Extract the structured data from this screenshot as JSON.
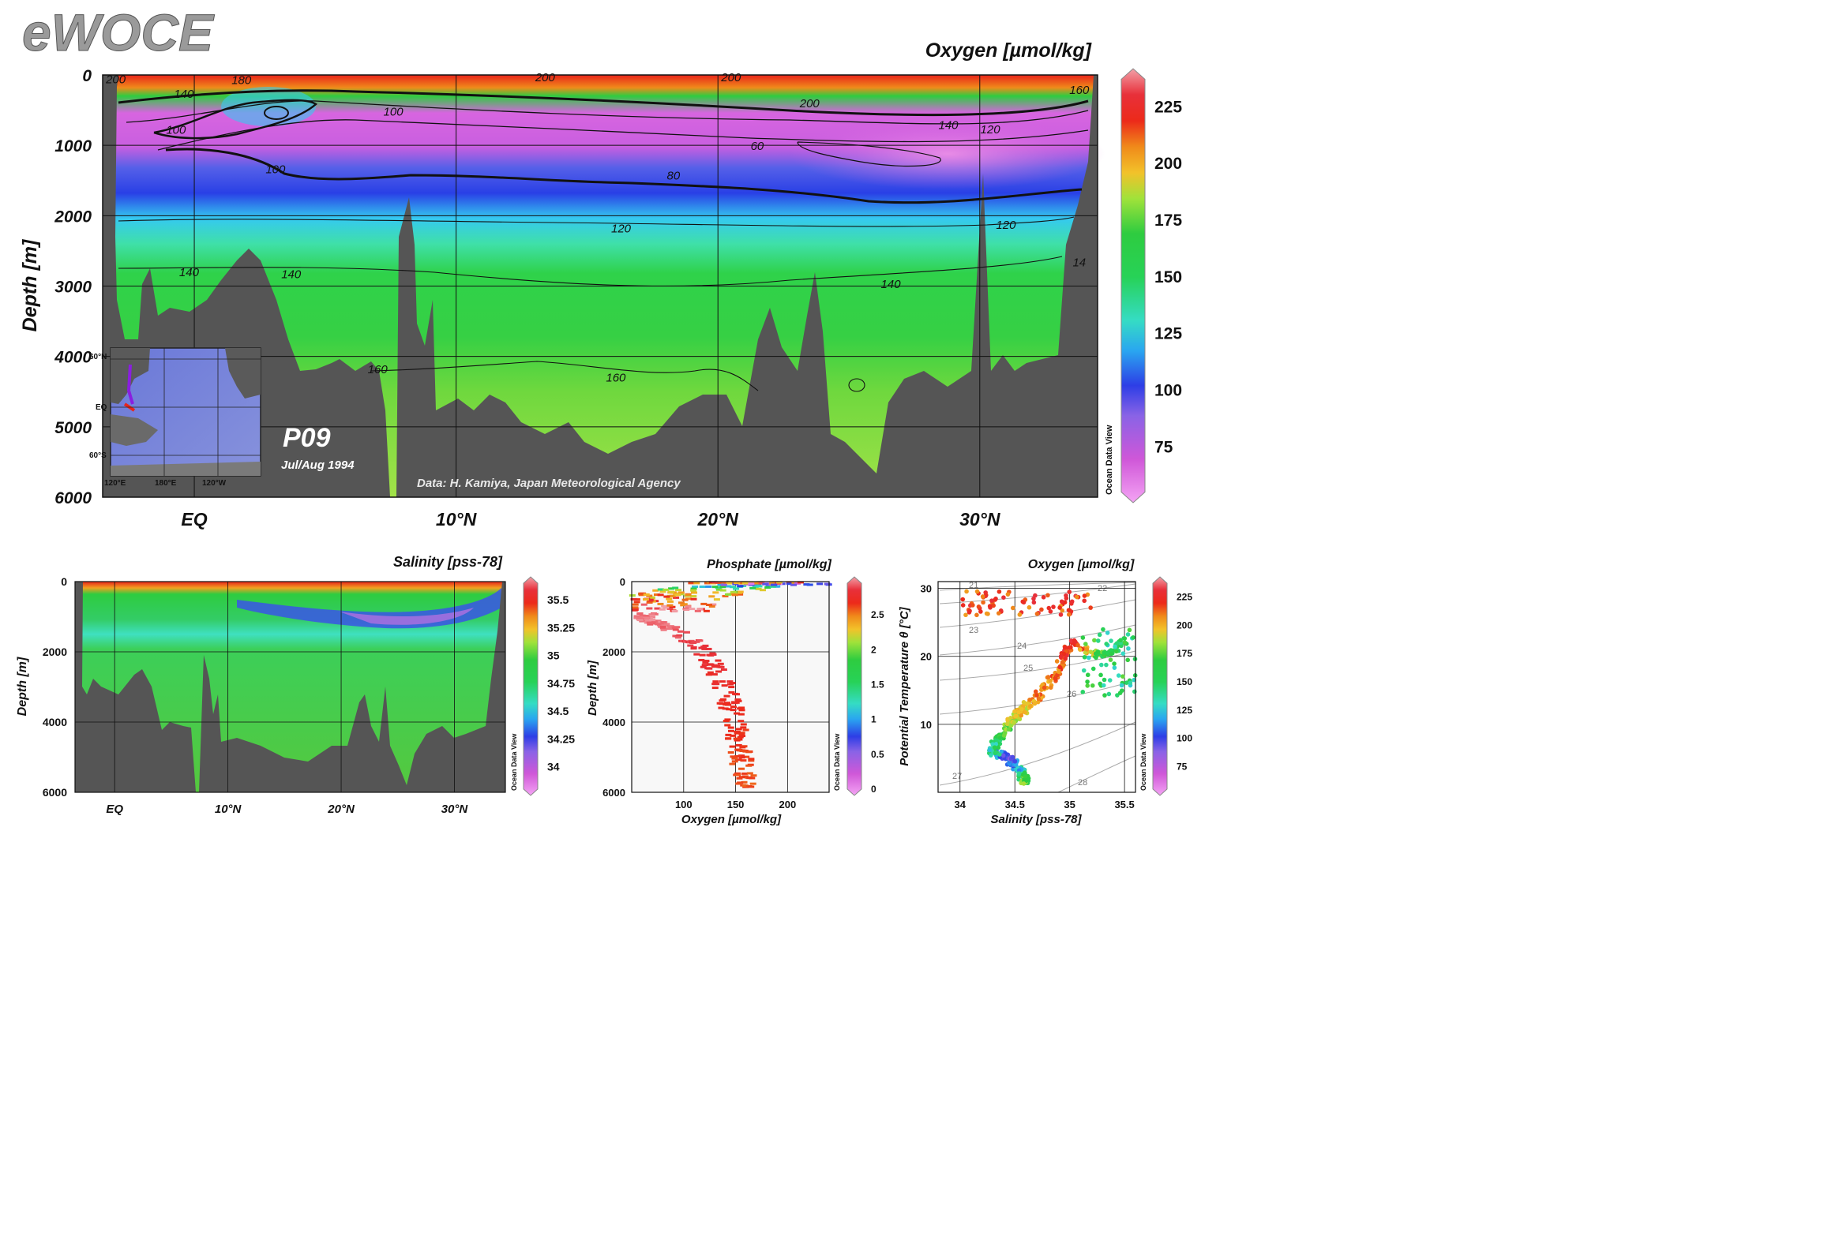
{
  "brand": "eWOCE",
  "colors": {
    "seafloor": "#555555",
    "grid": "#111111",
    "scale": [
      "#f08ff0",
      "#cf57d8",
      "#8a63e6",
      "#2d3ee6",
      "#2aa6f0",
      "#35dcc4",
      "#27d257",
      "#2ecc40",
      "#9fe23a",
      "#f2c22a",
      "#f08a1a",
      "#ec2a1a",
      "#e8303a",
      "#f2a0a8"
    ]
  },
  "chart_data": [
    {
      "type": "heatmap",
      "title": "Oxygen [µmol/kg]",
      "ylabel": "Depth [m]",
      "xlabel": "",
      "x_ticks": [
        "EQ",
        "10°N",
        "20°N",
        "30°N"
      ],
      "x_tick_values": [
        0,
        10,
        20,
        30
      ],
      "xlim": [
        -3.5,
        34.5
      ],
      "y_ticks": [
        "0",
        "1000",
        "2000",
        "3000",
        "4000",
        "5000",
        "6000"
      ],
      "y_tick_values": [
        0,
        1000,
        2000,
        3000,
        4000,
        5000,
        6000
      ],
      "ylim": [
        6000,
        0
      ],
      "colorbar": {
        "ticks": [
          "75",
          "100",
          "125",
          "150",
          "175",
          "200",
          "225"
        ],
        "tick_values": [
          75,
          100,
          125,
          150,
          175,
          200,
          225
        ],
        "range": [
          55,
          237
        ]
      },
      "contour_labels": [
        {
          "text": "200",
          "x": -3.0,
          "y": 50
        },
        {
          "text": "180",
          "x": 1.8,
          "y": 60
        },
        {
          "text": "140",
          "x": -0.4,
          "y": 260
        },
        {
          "text": "100",
          "x": -0.7,
          "y": 770
        },
        {
          "text": "100",
          "x": 7.6,
          "y": 510
        },
        {
          "text": "100",
          "x": 3.1,
          "y": 1330
        },
        {
          "text": "200",
          "x": 13.4,
          "y": 20
        },
        {
          "text": "200",
          "x": 20.5,
          "y": 20
        },
        {
          "text": "200",
          "x": 23.5,
          "y": 390
        },
        {
          "text": "160",
          "x": 33.8,
          "y": 200
        },
        {
          "text": "140",
          "x": 28.8,
          "y": 700
        },
        {
          "text": "120",
          "x": 30.4,
          "y": 760
        },
        {
          "text": "60",
          "x": 21.5,
          "y": 1000
        },
        {
          "text": "80",
          "x": 18.3,
          "y": 1420
        },
        {
          "text": "120",
          "x": 16.3,
          "y": 2170
        },
        {
          "text": "120",
          "x": 31.0,
          "y": 2120
        },
        {
          "text": "140",
          "x": -0.2,
          "y": 2790
        },
        {
          "text": "140",
          "x": 3.7,
          "y": 2820
        },
        {
          "text": "140",
          "x": 26.6,
          "y": 2960
        },
        {
          "text": "14",
          "x": 33.8,
          "y": 2650
        },
        {
          "text": "160",
          "x": 7.0,
          "y": 4170
        },
        {
          "text": "160",
          "x": 16.1,
          "y": 4290
        }
      ],
      "track_label": "P09",
      "period_label": "Jul/Aug 1994",
      "credit": "Data: H. Kamiya, Japan Meteorological Agency",
      "software": "Ocean Data View",
      "inset_map": {
        "lat_labels": [
          "60°N",
          "EQ",
          "60°S"
        ],
        "lon_labels": [
          "120°E",
          "180°E",
          "120°W"
        ]
      }
    },
    {
      "type": "heatmap",
      "title": "Salinity [pss-78]",
      "ylabel": "Depth [m]",
      "x_ticks": [
        "EQ",
        "10°N",
        "20°N",
        "30°N"
      ],
      "x_tick_values": [
        0,
        10,
        20,
        30
      ],
      "xlim": [
        -3.5,
        34.5
      ],
      "y_ticks": [
        "0",
        "2000",
        "4000",
        "6000"
      ],
      "y_tick_values": [
        0,
        2000,
        4000,
        6000
      ],
      "ylim": [
        6000,
        0
      ],
      "colorbar": {
        "ticks": [
          "34",
          "34.25",
          "34.5",
          "34.75",
          "35",
          "35.25",
          "35.5"
        ],
        "tick_values": [
          34,
          34.25,
          34.5,
          34.75,
          35,
          35.25,
          35.5
        ],
        "range": [
          33.8,
          35.65
        ]
      },
      "software": "Ocean Data View"
    },
    {
      "type": "scatter",
      "title": "Phosphate [µmol/kg]",
      "xlabel": "Oxygen [µmol/kg]",
      "ylabel": "Depth [m]",
      "x_ticks": [
        "100",
        "150",
        "200"
      ],
      "x_tick_values": [
        100,
        150,
        200
      ],
      "xlim": [
        50,
        240
      ],
      "y_ticks": [
        "0",
        "2000",
        "4000",
        "6000"
      ],
      "y_tick_values": [
        0,
        2000,
        4000,
        6000
      ],
      "ylim": [
        6000,
        0
      ],
      "colorbar": {
        "ticks": [
          "0",
          "0.5",
          "1",
          "1.5",
          "2",
          "2.5"
        ],
        "tick_values": [
          0,
          0.5,
          1,
          1.5,
          2,
          2.5
        ],
        "range": [
          0,
          2.95
        ]
      },
      "points_approx": [
        {
          "depth": 50,
          "oxygen": 215,
          "phosphate": 0.2
        },
        {
          "depth": 120,
          "oxygen": 170,
          "phosphate": 1.0
        },
        {
          "depth": 250,
          "oxygen": 120,
          "phosphate": 1.8
        },
        {
          "depth": 450,
          "oxygen": 90,
          "phosphate": 2.3
        },
        {
          "depth": 700,
          "oxygen": 75,
          "phosphate": 2.7
        },
        {
          "depth": 1000,
          "oxygen": 60,
          "phosphate": 2.9
        },
        {
          "depth": 1500,
          "oxygen": 100,
          "phosphate": 2.8
        },
        {
          "depth": 2000,
          "oxygen": 120,
          "phosphate": 2.7
        },
        {
          "depth": 3000,
          "oxygen": 140,
          "phosphate": 2.6
        },
        {
          "depth": 4000,
          "oxygen": 150,
          "phosphate": 2.5
        },
        {
          "depth": 5000,
          "oxygen": 155,
          "phosphate": 2.45
        },
        {
          "depth": 5800,
          "oxygen": 160,
          "phosphate": 2.4
        }
      ],
      "software": "Ocean Data View"
    },
    {
      "type": "scatter",
      "title": "Oxygen [µmol/kg]",
      "xlabel": "Salinity [pss-78]",
      "ylabel": "Potential Temperature θ [°C]",
      "x_ticks": [
        "34",
        "34.5",
        "35",
        "35.5"
      ],
      "x_tick_values": [
        34,
        34.5,
        35,
        35.5
      ],
      "xlim": [
        33.8,
        35.6
      ],
      "y_ticks": [
        "10",
        "20",
        "30"
      ],
      "y_tick_values": [
        10,
        20,
        30
      ],
      "ylim": [
        0,
        31
      ],
      "density_labels": [
        "21",
        "22",
        "23",
        "24",
        "25",
        "26",
        "27",
        "28"
      ],
      "colorbar": {
        "ticks": [
          "75",
          "100",
          "125",
          "150",
          "175",
          "200",
          "225"
        ],
        "tick_values": [
          75,
          100,
          125,
          150,
          175,
          200,
          225
        ],
        "range": [
          55,
          237
        ]
      },
      "points_approx": [
        {
          "salinity": 34.6,
          "theta": 1.5,
          "oxygen": 160
        },
        {
          "salinity": 34.55,
          "theta": 3,
          "oxygen": 130
        },
        {
          "salinity": 34.45,
          "theta": 5,
          "oxygen": 85
        },
        {
          "salinity": 34.3,
          "theta": 6,
          "oxygen": 130
        },
        {
          "salinity": 34.35,
          "theta": 8,
          "oxygen": 150
        },
        {
          "salinity": 34.5,
          "theta": 11,
          "oxygen": 175
        },
        {
          "salinity": 34.7,
          "theta": 14,
          "oxygen": 190
        },
        {
          "salinity": 34.9,
          "theta": 18,
          "oxygen": 200
        },
        {
          "salinity": 35.0,
          "theta": 22,
          "oxygen": 215
        },
        {
          "salinity": 35.3,
          "theta": 20,
          "oxygen": 150
        },
        {
          "salinity": 35.5,
          "theta": 22,
          "oxygen": 140
        },
        {
          "salinity": 34.4,
          "theta": 28,
          "oxygen": 215
        },
        {
          "salinity": 34.0,
          "theta": 29,
          "oxygen": 205
        }
      ],
      "software": "Ocean Data View"
    }
  ]
}
